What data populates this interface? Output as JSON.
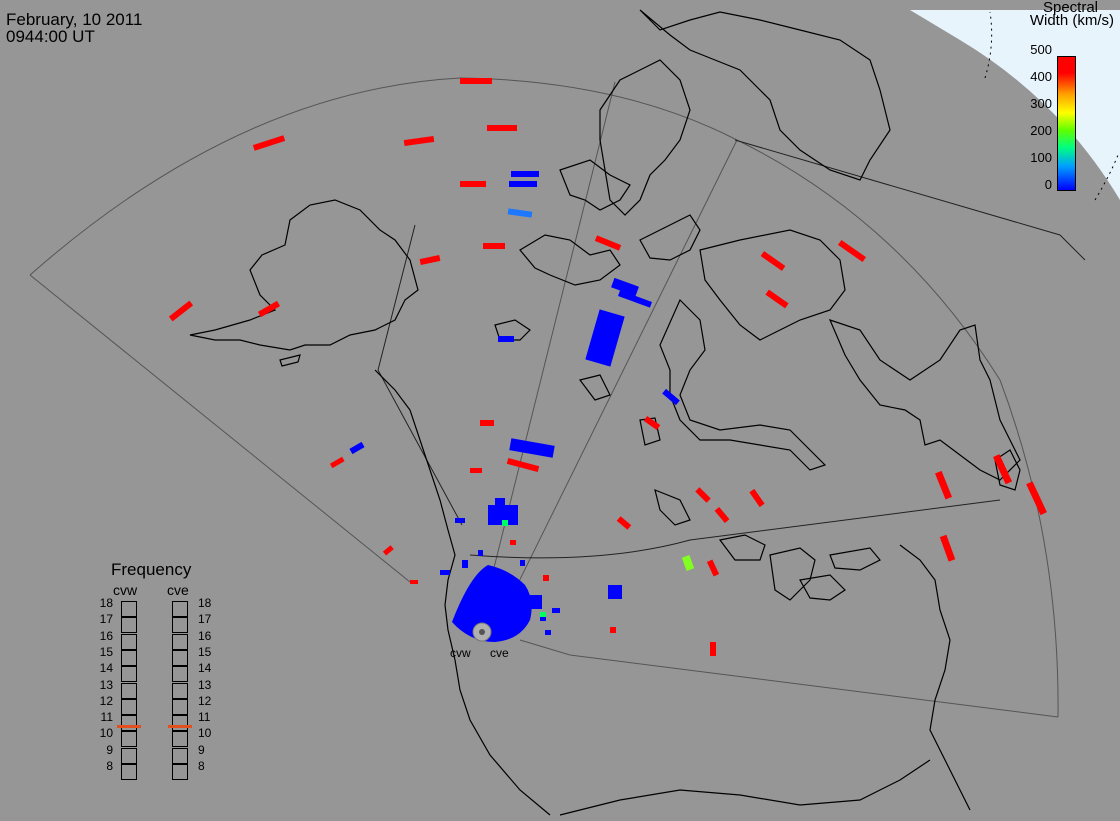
{
  "header": {
    "date": "February, 10 2011",
    "time": "0944:00 UT"
  },
  "colorbar": {
    "title_line1": "Spectral",
    "title_line2": "Width (km/s)",
    "ticks": [
      "500",
      "400",
      "300",
      "200",
      "100",
      "0"
    ],
    "min": 0,
    "max": 500,
    "colors": {
      "low": "#0000ff",
      "mid": "#00ff80",
      "high": "#ff0000"
    }
  },
  "frequency_panel": {
    "title": "Frequency",
    "radars": [
      "cvw",
      "cve"
    ],
    "scale": [
      "18",
      "17",
      "16",
      "15",
      "14",
      "13",
      "12",
      "11",
      "10",
      "9",
      "8"
    ],
    "values_mhz": {
      "cvw": 10.9,
      "cve": 10.9
    },
    "marker_color": "#e35020"
  },
  "radar_sites": {
    "west_label": "cvw",
    "east_label": "cve"
  },
  "map": {
    "background": "#969696",
    "daylight_color": "#e8f4fc",
    "coastline_color": "#000000",
    "field_of_view_color": "#444444"
  },
  "scatter_colors": {
    "high_width": "#ff0000",
    "low_width": "#0000ff",
    "mid_low": "#1e78ff",
    "mid": "#00ff60",
    "mid_high": "#80ff20"
  }
}
